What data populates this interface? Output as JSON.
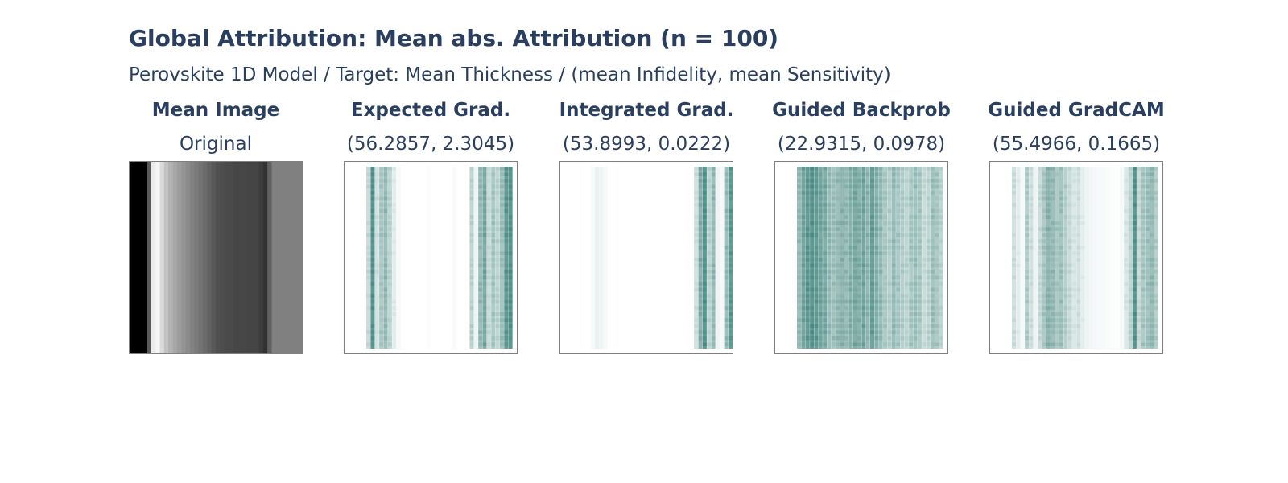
{
  "title": "Global Attribution: Mean abs. Attribution (n = 100)",
  "subtitle": "Perovskite 1D Model / Target: Mean Thickness / (mean Infidelity, mean Sensitivity)",
  "columns": [
    {
      "title": "Mean Image",
      "metric": "Original"
    },
    {
      "title": "Expected Grad.",
      "metric": "(56.2857, 2.3045)"
    },
    {
      "title": "Integrated Grad.",
      "metric": "(53.8993, 0.0222)"
    },
    {
      "title": "Guided Backprob",
      "metric": "(22.9315, 0.0978)"
    },
    {
      "title": "Guided GradCAM",
      "metric": "(55.4966, 0.1665)"
    }
  ],
  "colors": {
    "text": "#2a3f5f",
    "attribution": "#13675d",
    "panel_border": "#7f7f7f"
  },
  "chart_data": {
    "type": "heatmap",
    "columns": 40,
    "mean_image_profile": [
      0.0,
      0.0,
      0.0,
      0.0,
      0.35,
      0.92,
      0.96,
      0.86,
      0.76,
      0.7,
      0.66,
      0.62,
      0.58,
      0.55,
      0.51,
      0.48,
      0.45,
      0.42,
      0.38,
      0.34,
      0.31,
      0.3,
      0.29,
      0.29,
      0.28,
      0.28,
      0.28,
      0.27,
      0.27,
      0.27,
      0.24,
      0.2,
      0.38,
      0.5,
      0.5,
      0.5,
      0.5,
      0.5,
      0.5,
      0.5
    ],
    "attribution_profiles": [
      [
        0,
        0,
        0,
        0,
        0,
        0.3,
        0.9,
        0.25,
        0.45,
        0.55,
        0.35,
        0.15,
        0.05,
        0,
        0,
        0,
        0,
        0,
        0,
        0.02,
        0,
        0,
        0,
        0,
        0,
        0.03,
        0,
        0,
        0,
        0.35,
        0.1,
        0.55,
        0.7,
        0.3,
        0.45,
        0.35,
        0.5,
        0.85,
        0.9,
        0
      ],
      [
        0,
        0,
        0,
        0,
        0,
        0,
        0,
        0.05,
        0.12,
        0.1,
        0.05,
        0,
        0,
        0,
        0,
        0,
        0,
        0,
        0,
        0,
        0,
        0,
        0,
        0,
        0,
        0,
        0,
        0,
        0,
        0,
        0,
        0.25,
        0.65,
        0.9,
        0.35,
        0.55,
        0.1,
        0.05,
        0.55,
        0.85
      ],
      [
        0,
        0,
        0,
        0,
        0,
        0.55,
        0.75,
        0.85,
        0.9,
        0.85,
        0.75,
        0.7,
        0.55,
        0.5,
        0.55,
        0.6,
        0.55,
        0.65,
        0.7,
        0.65,
        0.75,
        0.6,
        0.8,
        0.65,
        0.55,
        0.45,
        0.4,
        0.55,
        0.45,
        0.4,
        0.35,
        0.45,
        0.5,
        0.45,
        0.3,
        0.35,
        0.5,
        0.45,
        0.35,
        0
      ],
      [
        0,
        0,
        0,
        0,
        0,
        0.25,
        0.15,
        0.05,
        0.4,
        0.25,
        0.1,
        0.3,
        0.45,
        0.6,
        0.55,
        0.45,
        0.5,
        0.4,
        0.3,
        0.2,
        0.25,
        0.15,
        0.1,
        0.08,
        0.06,
        0.05,
        0.04,
        0.03,
        0.02,
        0.02,
        0.05,
        0.2,
        0.35,
        0.9,
        0.3,
        0.45,
        0.5,
        0.55,
        0.4,
        0
      ]
    ]
  }
}
